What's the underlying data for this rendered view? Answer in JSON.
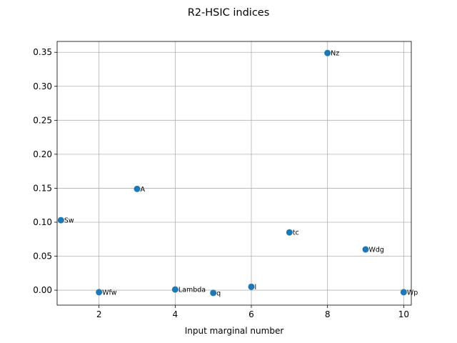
{
  "chart_data": {
    "type": "scatter",
    "title": "R2-HSIC indices",
    "xlabel": "Input marginal number",
    "ylabel": "",
    "xlim": [
      0.9,
      10.2
    ],
    "ylim": [
      -0.022,
      0.366
    ],
    "grid": true,
    "color": "#1f77b4",
    "xticks": [
      2,
      4,
      6,
      8,
      10
    ],
    "xtick_labels": [
      "2",
      "4",
      "6",
      "8",
      "10"
    ],
    "yticks": [
      0.0,
      0.05,
      0.1,
      0.15,
      0.2,
      0.25,
      0.3,
      0.35
    ],
    "ytick_labels": [
      "0.00",
      "0.05",
      "0.10",
      "0.15",
      "0.20",
      "0.25",
      "0.30",
      "0.35"
    ],
    "points": [
      {
        "x": 1,
        "y": 0.103,
        "label": "Sw"
      },
      {
        "x": 2,
        "y": -0.003,
        "label": "Wfw"
      },
      {
        "x": 3,
        "y": 0.149,
        "label": "A"
      },
      {
        "x": 4,
        "y": 0.001,
        "label": "Lambda"
      },
      {
        "x": 5,
        "y": -0.004,
        "label": "q"
      },
      {
        "x": 6,
        "y": 0.005,
        "label": "l"
      },
      {
        "x": 7,
        "y": 0.085,
        "label": "tc"
      },
      {
        "x": 8,
        "y": 0.349,
        "label": "Nz"
      },
      {
        "x": 9,
        "y": 0.06,
        "label": "Wdg"
      },
      {
        "x": 10,
        "y": -0.003,
        "label": "Wp"
      }
    ]
  }
}
